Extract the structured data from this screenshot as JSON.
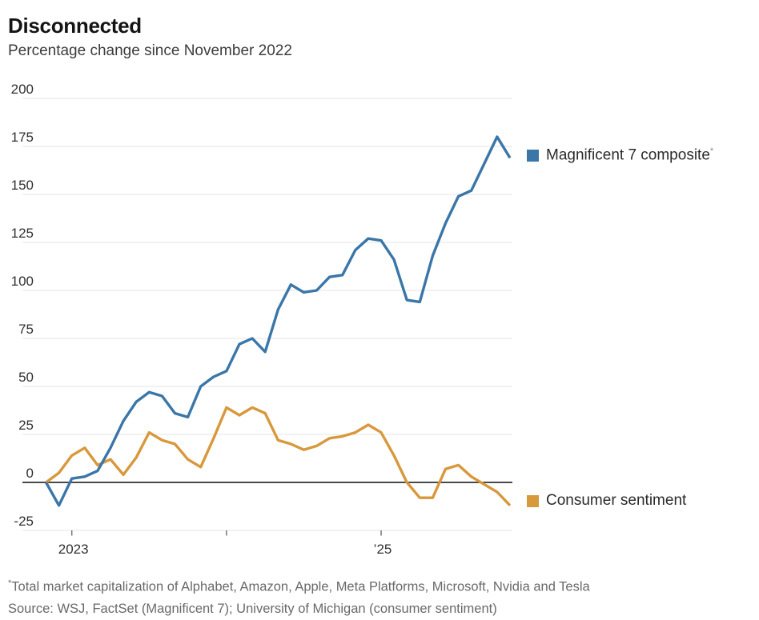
{
  "header": {
    "title": "Disconnected",
    "subtitle": "Percentage change since November 2022"
  },
  "legend": [
    {
      "label": "Magnificent 7 composite",
      "suffix_marker": "*",
      "color": "#3a76a8"
    },
    {
      "label": "Consumer sentiment",
      "suffix_marker": "",
      "color": "#d8983c"
    }
  ],
  "footer": {
    "footnote_marker": "*",
    "footnote_text": "Total market capitalization of Alphabet, Amazon, Apple, Meta Platforms, Microsoft, Nvidia and Tesla",
    "source_text": "Source: WSJ, FactSet (Magnificent 7); University of Michigan (consumer sentiment)"
  },
  "chart_data": {
    "type": "line",
    "title": "Disconnected",
    "subtitle": "Percentage change since November 2022",
    "x_unit": "month",
    "x_start": "Nov 2022",
    "x_end": "mid-Oct 2025",
    "x_tick_labels": [
      {
        "label": "2023",
        "index": 2
      },
      {
        "label": "",
        "index": 14
      },
      {
        "label": "’25",
        "index": 26
      }
    ],
    "y_ticks": [
      200,
      175,
      150,
      125,
      100,
      75,
      50,
      25,
      0,
      -25
    ],
    "ylim": [
      -25,
      200
    ],
    "grid": "horizontal",
    "legend_position": "right",
    "series": [
      {
        "name": "Magnificent 7 composite",
        "color": "#3a76a8",
        "values": [
          0,
          -12,
          2,
          3,
          6,
          18,
          32,
          42,
          47,
          45,
          36,
          34,
          50,
          55,
          58,
          72,
          75,
          68,
          90,
          103,
          99,
          100,
          107,
          108,
          121,
          127,
          126,
          116,
          95,
          94,
          118,
          135,
          149,
          152,
          166,
          180,
          169
        ]
      },
      {
        "name": "Consumer sentiment",
        "color": "#d8983c",
        "values": [
          0,
          5,
          14,
          18,
          9,
          12,
          4,
          13,
          26,
          22,
          20,
          12,
          8,
          23,
          39,
          35,
          39,
          36,
          22,
          20,
          17,
          19,
          23,
          24,
          26,
          30,
          26,
          14,
          0,
          -8,
          -8,
          7,
          9,
          3,
          -1,
          -5,
          -12
        ]
      }
    ]
  }
}
